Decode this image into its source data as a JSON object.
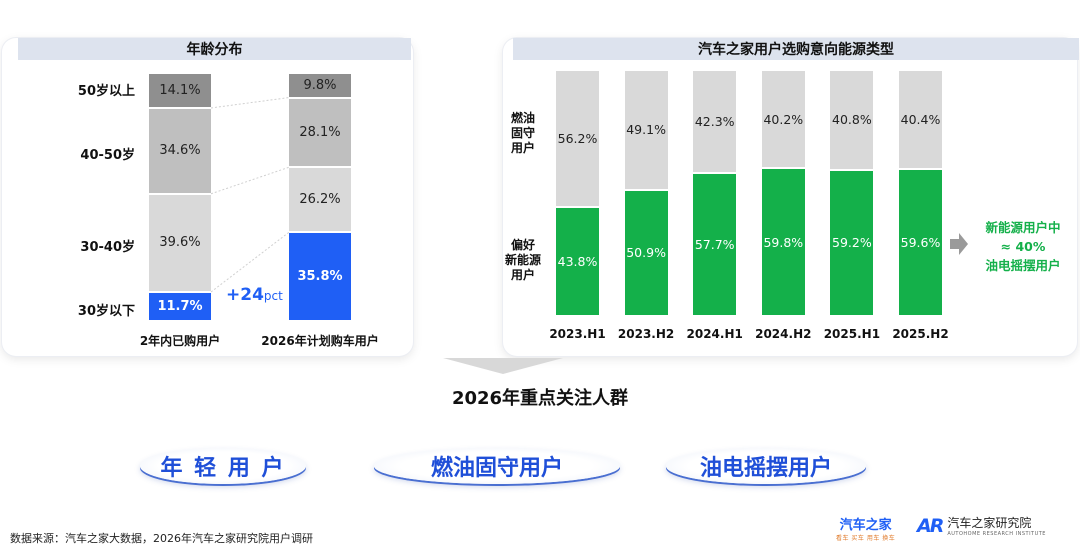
{
  "left_panel": {
    "title": "年龄分布",
    "age_groups": [
      "50岁以上",
      "40-50岁",
      "30-40岁",
      "30岁以下"
    ],
    "annotation_num": "+24",
    "annotation_unit": "pct"
  },
  "right_panel": {
    "title": "汽车之家用户选购意向能源类型",
    "y_top_label": "燃油\n固守\n用户",
    "y_bottom_label": "偏好\n新能源\n用户",
    "callout": [
      "新能源用户中",
      "≈ 40%",
      "油电摇摆用户"
    ]
  },
  "focus_heading": "2026年重点关注人群",
  "pills": [
    "年 轻 用 户",
    "燃油固守用户",
    "油电摇摆用户"
  ],
  "footer": {
    "source": "数据来源：汽车之家大数据，2026年汽车之家研究院用户调研",
    "logo_autohome": "汽车之家",
    "logo_autohome_tagline": "看车 买车 用车 换车",
    "logo_ar_mark": "AR",
    "logo_research": "汽车之家研究院",
    "logo_research_en": "AUTOHOME RESEARCH INSTITUTE"
  },
  "colors": {
    "accent_blue": "#1f5ff5",
    "green": "#14b04a",
    "gray_light": "#d9d9d9",
    "gray_mid": "#bfbfbf",
    "gray_dark": "#8f8f8f",
    "arrow_gray": "#9a9a9a"
  },
  "chart_data": [
    {
      "type": "bar",
      "subtype": "stacked-100",
      "title": "年龄分布",
      "categories": [
        "2年内已购用户",
        "2026年计划购车用户"
      ],
      "series": [
        {
          "name": "30岁以下",
          "values": [
            11.7,
            35.8
          ]
        },
        {
          "name": "30-40岁",
          "values": [
            39.6,
            26.2
          ]
        },
        {
          "name": "40-50岁",
          "values": [
            34.6,
            28.1
          ]
        },
        {
          "name": "50岁以上",
          "values": [
            14.1,
            9.8
          ]
        }
      ],
      "ylim": [
        0,
        100
      ]
    },
    {
      "type": "bar",
      "subtype": "stacked-100",
      "title": "汽车之家用户选购意向能源类型",
      "categories": [
        "2023.H1",
        "2023.H2",
        "2024.H1",
        "2024.H2",
        "2025.H1",
        "2025.H2"
      ],
      "series": [
        {
          "name": "偏好新能源用户",
          "values": [
            43.8,
            50.9,
            57.7,
            59.8,
            59.2,
            59.6
          ]
        },
        {
          "name": "燃油固守用户",
          "values": [
            56.2,
            49.1,
            42.3,
            40.2,
            40.8,
            40.4
          ]
        }
      ],
      "ylim": [
        0,
        100
      ]
    }
  ]
}
